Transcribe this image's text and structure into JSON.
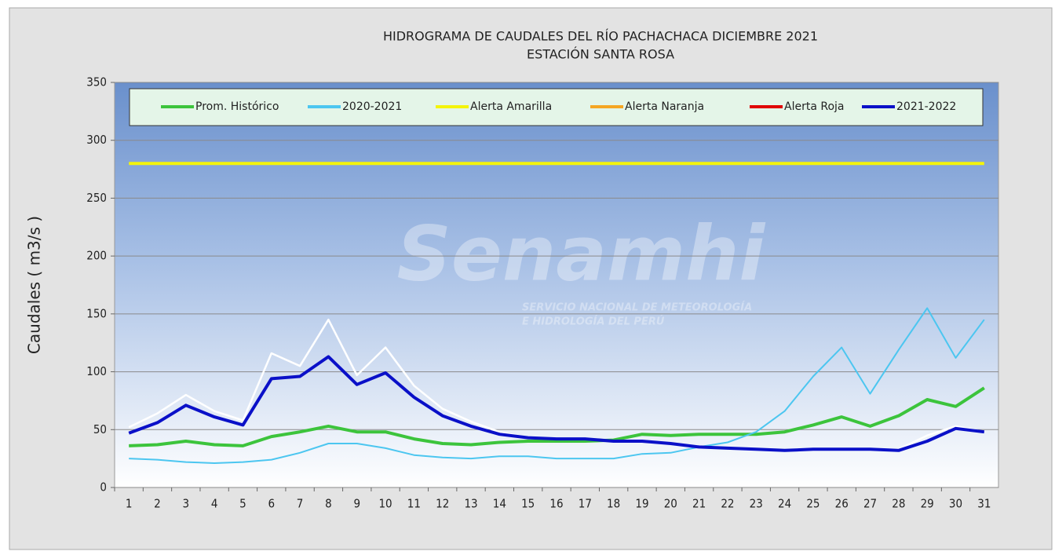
{
  "chart_data": {
    "type": "line",
    "title": "HIDROGRAMA DE CAUDALES DEL RÍO PACHACHACA DICIEMBRE  2021",
    "subtitle": "ESTACIÓN SANTA ROSA",
    "y_label": "Caudales ( m3/s )",
    "watermark": [
      "Senamhi",
      "SERVICIO NACIONAL DE METEOROLOGÍA",
      "E HIDROLOGÍA DEL PERÚ"
    ],
    "categories": [
      "1",
      "2",
      "3",
      "4",
      "5",
      "6",
      "7",
      "8",
      "9",
      "10",
      "11",
      "12",
      "13",
      "14",
      "15",
      "16",
      "17",
      "18",
      "19",
      "20",
      "21",
      "22",
      "23",
      "24",
      "25",
      "26",
      "27",
      "28",
      "29",
      "30",
      "31"
    ],
    "ylim": [
      0,
      350
    ],
    "yticks": [
      0,
      50,
      100,
      150,
      200,
      250,
      300,
      350
    ],
    "grid": true,
    "series": [
      {
        "color": "#ffffff",
        "values": [
          52,
          64,
          80,
          66,
          58,
          116,
          105,
          145,
          97,
          121,
          88,
          68,
          57,
          48,
          43,
          42,
          42,
          40,
          40,
          38,
          35,
          34,
          33,
          32,
          33,
          33,
          33,
          33,
          45,
          53,
          48
        ]
      },
      {
        "name": "Prom. Histórico",
        "color": "#3cc43c",
        "values": [
          36,
          37,
          40,
          37,
          36,
          44,
          48,
          53,
          48,
          48,
          42,
          38,
          37,
          39,
          40,
          40,
          40,
          41,
          46,
          45,
          46,
          46,
          46,
          48,
          54,
          61,
          53,
          62,
          76,
          70,
          86
        ]
      },
      {
        "name": "2020-2021",
        "color": "#4cc6f0",
        "values": [
          25,
          24,
          22,
          21,
          22,
          24,
          30,
          38,
          38,
          34,
          28,
          26,
          25,
          27,
          27,
          25,
          25,
          25,
          29,
          30,
          35,
          39,
          48,
          66,
          96,
          121,
          81,
          119,
          155,
          112,
          145
        ]
      },
      {
        "name": "Alerta Amarilla",
        "color": "#f4f40a",
        "values": [
          280,
          280,
          280,
          280,
          280,
          280,
          280,
          280,
          280,
          280,
          280,
          280,
          280,
          280,
          280,
          280,
          280,
          280,
          280,
          280,
          280,
          280,
          280,
          280,
          280,
          280,
          280,
          280,
          280,
          280,
          280
        ]
      },
      {
        "name": "Alerta Naranja",
        "color": "#f5a623",
        "values": [
          null,
          null,
          null,
          null,
          null,
          null,
          null,
          null,
          null,
          null,
          null,
          null,
          null,
          null,
          null,
          null,
          null,
          null,
          null,
          null,
          null,
          null,
          null,
          null,
          null,
          null,
          null,
          null,
          null,
          null,
          null
        ]
      },
      {
        "name": "Alerta Roja",
        "color": "#e00000",
        "values": [
          null,
          null,
          null,
          null,
          null,
          null,
          null,
          null,
          null,
          null,
          null,
          null,
          null,
          null,
          null,
          null,
          null,
          null,
          null,
          null,
          null,
          null,
          null,
          null,
          null,
          null,
          null,
          null,
          null,
          null,
          null
        ]
      },
      {
        "name": "2021-2022",
        "color": "#0a10c8",
        "values": [
          47,
          56,
          71,
          61,
          54,
          94,
          96,
          113,
          89,
          99,
          78,
          62,
          53,
          46,
          43,
          42,
          42,
          40,
          40,
          38,
          35,
          34,
          33,
          32,
          33,
          33,
          33,
          32,
          40,
          51,
          48
        ]
      }
    ]
  }
}
